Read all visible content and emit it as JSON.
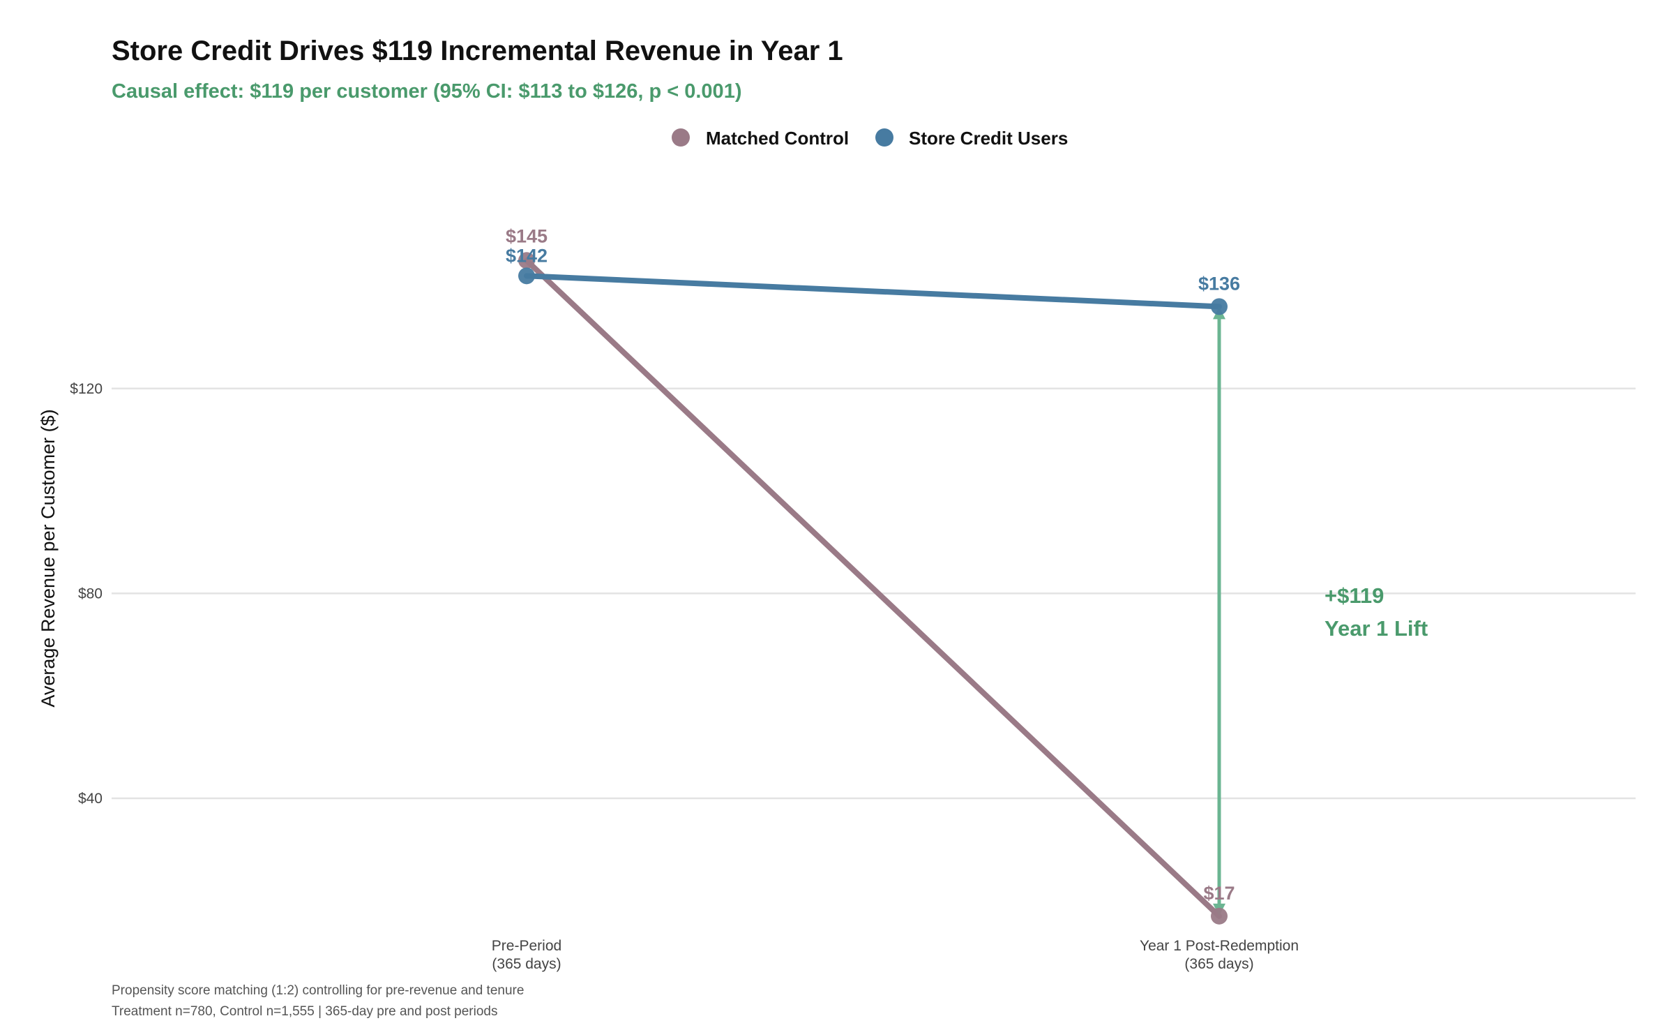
{
  "chart_data": {
    "type": "line",
    "title": "Store Credit Drives $119 Incremental Revenue in Year 1",
    "subtitle": "Causal effect: $119 per customer (95% CI: $113 to $126, p < 0.001)",
    "ylabel": "Average Revenue per Customer ($)",
    "xlabel": "",
    "categories": [
      [
        "Pre-Period",
        "(365 days)"
      ],
      [
        "Year 1 Post-Redemption",
        "(365 days)"
      ]
    ],
    "y_ticks": [
      40,
      80,
      120
    ],
    "y_tick_labels": [
      "$40",
      "$80",
      "$120"
    ],
    "ylim": [
      14,
      164
    ],
    "grid": "horizontal major",
    "legend_position": "top",
    "series": [
      {
        "name": "Matched Control",
        "values": [
          145,
          17
        ],
        "labels": [
          "$145",
          "$17"
        ],
        "color": "#9a7a87"
      },
      {
        "name": "Store Credit Users",
        "values": [
          142,
          136
        ],
        "labels": [
          "$142",
          "$136"
        ],
        "color": "#477ba1"
      }
    ],
    "annotation": {
      "type": "double-arrow",
      "category_index": 1,
      "from": 136,
      "to": 17,
      "color": "#6bb592",
      "label_line1": "+$119",
      "label_line2": "Year 1 Lift",
      "label_color": "#4a9a6c"
    },
    "caption": [
      "Propensity score matching (1:2) controlling for pre-revenue and tenure",
      "Treatment n=780, Control n=1,555 | 365-day pre and post periods"
    ],
    "colors": {
      "title": "#111111",
      "subtitle": "#4a9a6c",
      "grid": "#e3e3e3",
      "axis_text": "#444444"
    }
  }
}
